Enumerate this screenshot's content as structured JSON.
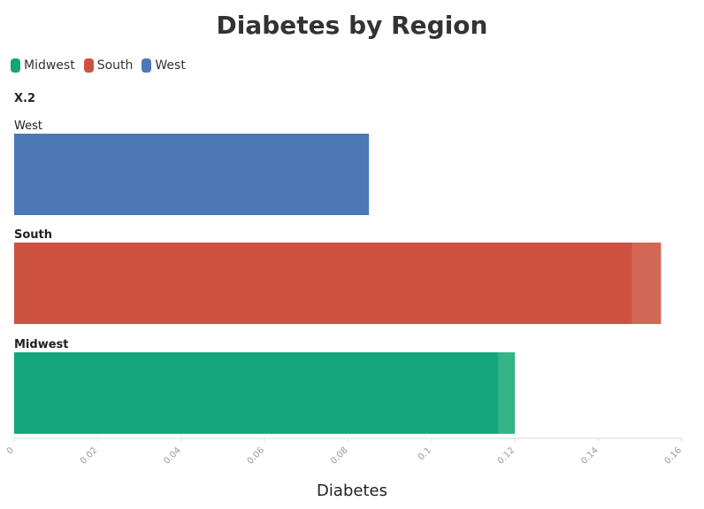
{
  "chart_data": {
    "type": "bar",
    "orientation": "horizontal",
    "title": "Diabetes by Region",
    "xlabel": "Diabetes",
    "ylabel": "X.2",
    "xlim": [
      0,
      0.16
    ],
    "xticks": [
      "0",
      "0.02",
      "0.04",
      "0.06",
      "0.08",
      "0.1",
      "0.12",
      "0.14",
      "0.16"
    ],
    "categories": [
      "West",
      "South",
      "Midwest"
    ],
    "values": [
      0.085,
      0.148,
      0.116
    ],
    "overlay_values": [
      0.085,
      0.155,
      0.12
    ],
    "colors": [
      "#4c78b5",
      "#cc523f",
      "#14a67a"
    ],
    "overlay_colors": [
      "#4c78b5",
      "#d36756",
      "#33b489"
    ],
    "legend": {
      "placement": "top-left",
      "entries": [
        {
          "label": "Midwest",
          "color": "#14a67a"
        },
        {
          "label": "South",
          "color": "#cc523f"
        },
        {
          "label": "West",
          "color": "#4c78b5"
        }
      ]
    },
    "grid": false
  }
}
